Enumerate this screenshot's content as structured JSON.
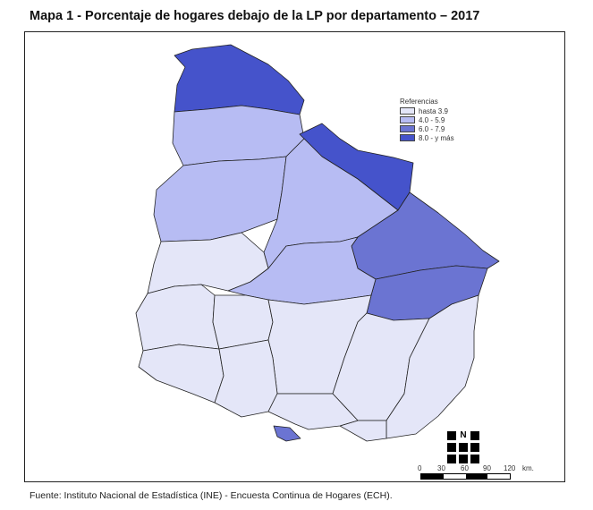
{
  "title": "Mapa 1 - Porcentaje de hogares debajo de la LP por departamento – 2017",
  "legend": {
    "title": "Referencias",
    "classes": [
      {
        "label": "hasta 3.9",
        "color": "#e4e6f8"
      },
      {
        "label": "4.0 - 5.9",
        "color": "#b7bcf3"
      },
      {
        "label": "6.0 - 7.9",
        "color": "#6b74d2"
      },
      {
        "label": "8.0 - y más",
        "color": "#4553cb"
      }
    ]
  },
  "regions": [
    {
      "id": "artigas",
      "class": 3
    },
    {
      "id": "salto",
      "class": 1
    },
    {
      "id": "rivera",
      "class": 3
    },
    {
      "id": "paysandu",
      "class": 1
    },
    {
      "id": "tacuarembo",
      "class": 1
    },
    {
      "id": "cerro-largo",
      "class": 2
    },
    {
      "id": "treinta-y-tres",
      "class": 2
    },
    {
      "id": "rio-negro",
      "class": 0
    },
    {
      "id": "durazno",
      "class": 1
    },
    {
      "id": "soriano",
      "class": 0
    },
    {
      "id": "flores",
      "class": 0
    },
    {
      "id": "florida",
      "class": 0
    },
    {
      "id": "lavalleja",
      "class": 0
    },
    {
      "id": "rocha",
      "class": 0
    },
    {
      "id": "maldonado",
      "class": 0
    },
    {
      "id": "colonia",
      "class": 0
    },
    {
      "id": "san-jose",
      "class": 0
    },
    {
      "id": "canelones",
      "class": 0
    },
    {
      "id": "montevideo",
      "class": 2
    }
  ],
  "north_label": "N",
  "scale": {
    "ticks": [
      "0",
      "30",
      "60",
      "90",
      "120"
    ],
    "unit": "km."
  },
  "source": "Fuente: Instituto Nacional de Estadística (INE) - Encuesta Continua de Hogares (ECH)."
}
